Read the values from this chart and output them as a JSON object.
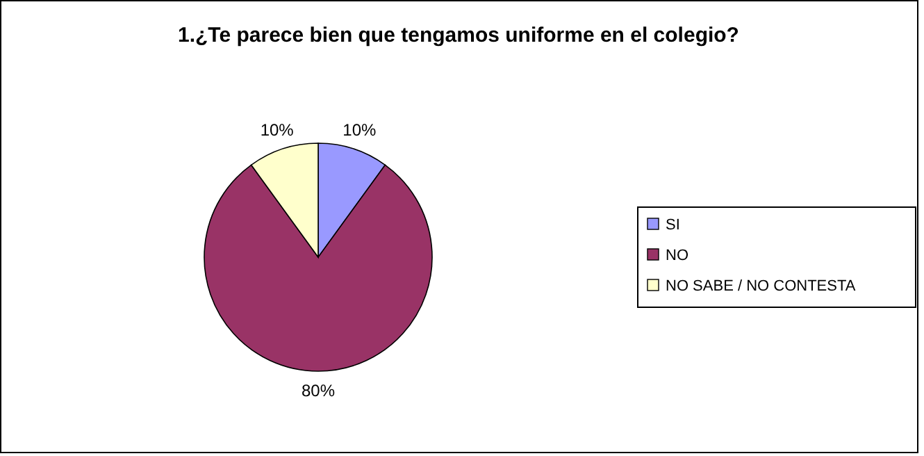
{
  "chart_data": {
    "type": "pie",
    "title": "1.¿Te parece bien que tengamos uniforme en el colegio?",
    "categories": [
      "SI",
      "NO",
      "NO SABE / NO CONTESTA"
    ],
    "values": [
      10,
      80,
      10
    ],
    "colors": [
      "#9999ff",
      "#993366",
      "#ffffcc"
    ],
    "value_labels": [
      "10%",
      "80%",
      "10%"
    ],
    "legend": "right"
  }
}
